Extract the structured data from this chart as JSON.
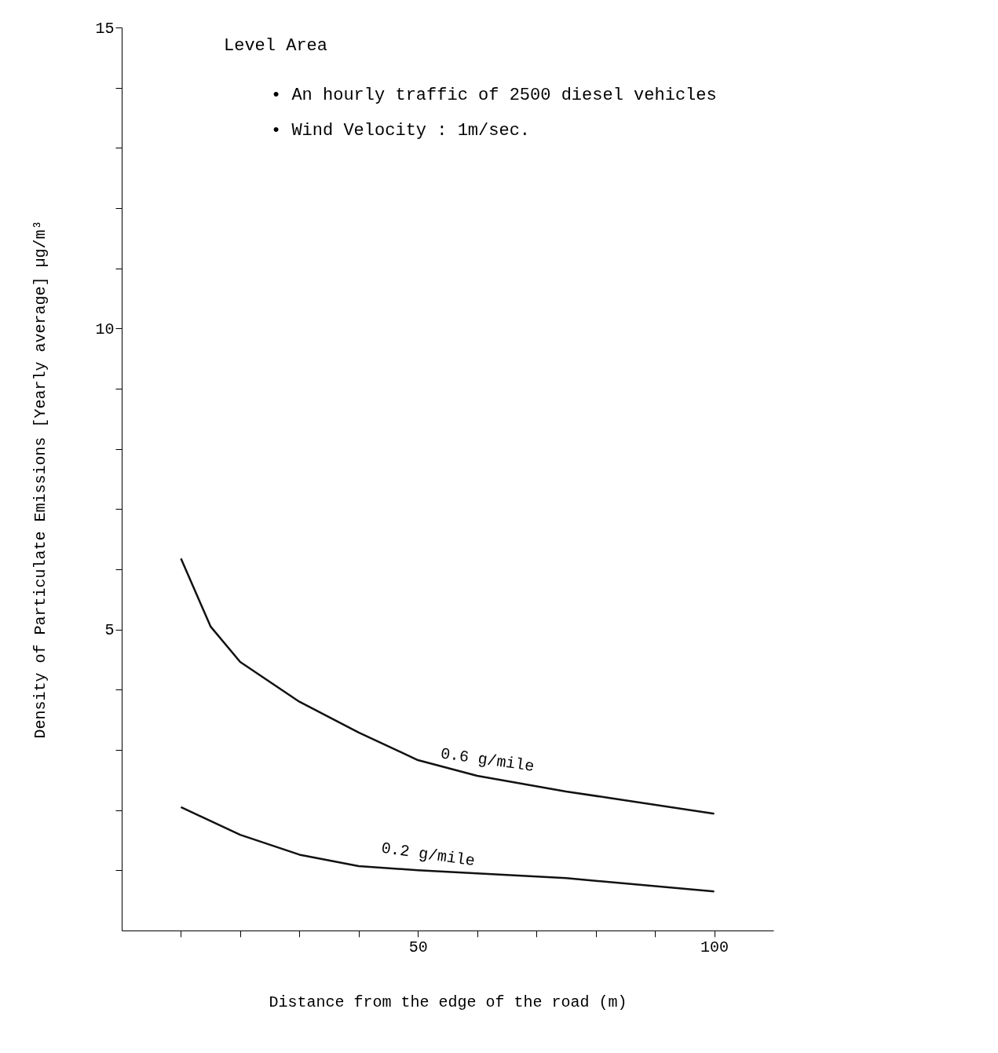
{
  "chart_data": {
    "type": "line",
    "xlabel": "Distance from the edge of the road (m)",
    "ylabel": "Density of Particulate Emissions [Yearly average] µg/m³",
    "series": [
      {
        "name": "0.6 g/mile",
        "color": "#111111",
        "x": [
          10,
          15,
          20,
          30,
          40,
          50,
          60,
          75,
          100
        ],
        "values": [
          6.18,
          5.05,
          4.46,
          3.8,
          3.29,
          2.83,
          2.57,
          2.31,
          1.94
        ]
      },
      {
        "name": "0.2 g/mile",
        "color": "#111111",
        "x": [
          10,
          20,
          30,
          40,
          50,
          75,
          100
        ],
        "values": [
          2.05,
          1.59,
          1.26,
          1.07,
          1.0,
          0.87,
          0.65
        ]
      }
    ],
    "xlim": [
      0,
      110
    ],
    "xticks": [
      {
        "value": 10,
        "label": null
      },
      {
        "value": 20,
        "label": null
      },
      {
        "value": 30,
        "label": null
      },
      {
        "value": 40,
        "label": null
      },
      50,
      {
        "value": 60,
        "label": null
      },
      {
        "value": 70,
        "label": null
      },
      {
        "value": 80,
        "label": null
      },
      {
        "value": 90,
        "label": null
      },
      100
    ],
    "ylim": [
      0,
      15
    ],
    "yticks": [
      {
        "value": 1,
        "label": null
      },
      {
        "value": 2,
        "label": null
      },
      {
        "value": 3,
        "label": null
      },
      {
        "value": 4,
        "label": null
      },
      5,
      {
        "value": 6,
        "label": null
      },
      {
        "value": 7,
        "label": null
      },
      {
        "value": 8,
        "label": null
      },
      {
        "value": 9,
        "label": null
      },
      10,
      {
        "value": 11,
        "label": null
      },
      {
        "value": 12,
        "label": null
      },
      {
        "value": 13,
        "label": null
      },
      {
        "value": 14,
        "label": null
      },
      15
    ],
    "annotations": [
      "Level Area",
      "• An hourly traffic of 2500 diesel vehicles",
      "• Wind Velocity  :  1m/sec."
    ],
    "grid": false,
    "legend": false,
    "marker": "none",
    "line_style": "solid"
  }
}
